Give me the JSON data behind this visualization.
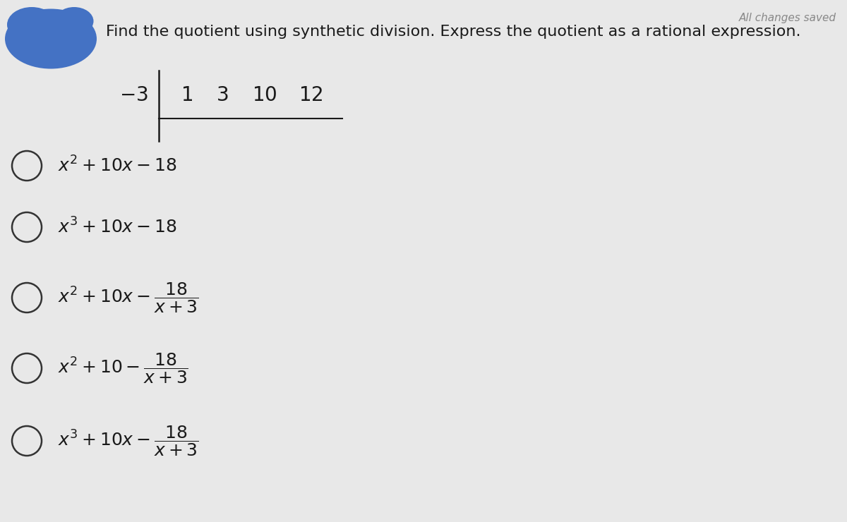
{
  "title_text": "Find the quotient using synthetic division. Express the quotient as a rational expression.",
  "saved_text": "All changes saved",
  "bg_color": "#e8e8e8",
  "synth_divisor": "$-3$",
  "synth_coeffs": [
    "$1$",
    "$3$",
    "$10$",
    "$12$"
  ],
  "options_math": [
    "$x^2 + 10x - 18$",
    "$x^3 + 10x - 18$",
    "$x^2 + 10x - \\dfrac{18}{x+3}$",
    "$x^2 + 10 - \\dfrac{18}{x+3}$",
    "$x^3 + 10x - \\dfrac{18}{x+3}$"
  ],
  "blue_color": "#4472c4",
  "font_size_title": 16,
  "font_size_options": 18,
  "font_size_synth": 20,
  "font_size_saved": 11
}
